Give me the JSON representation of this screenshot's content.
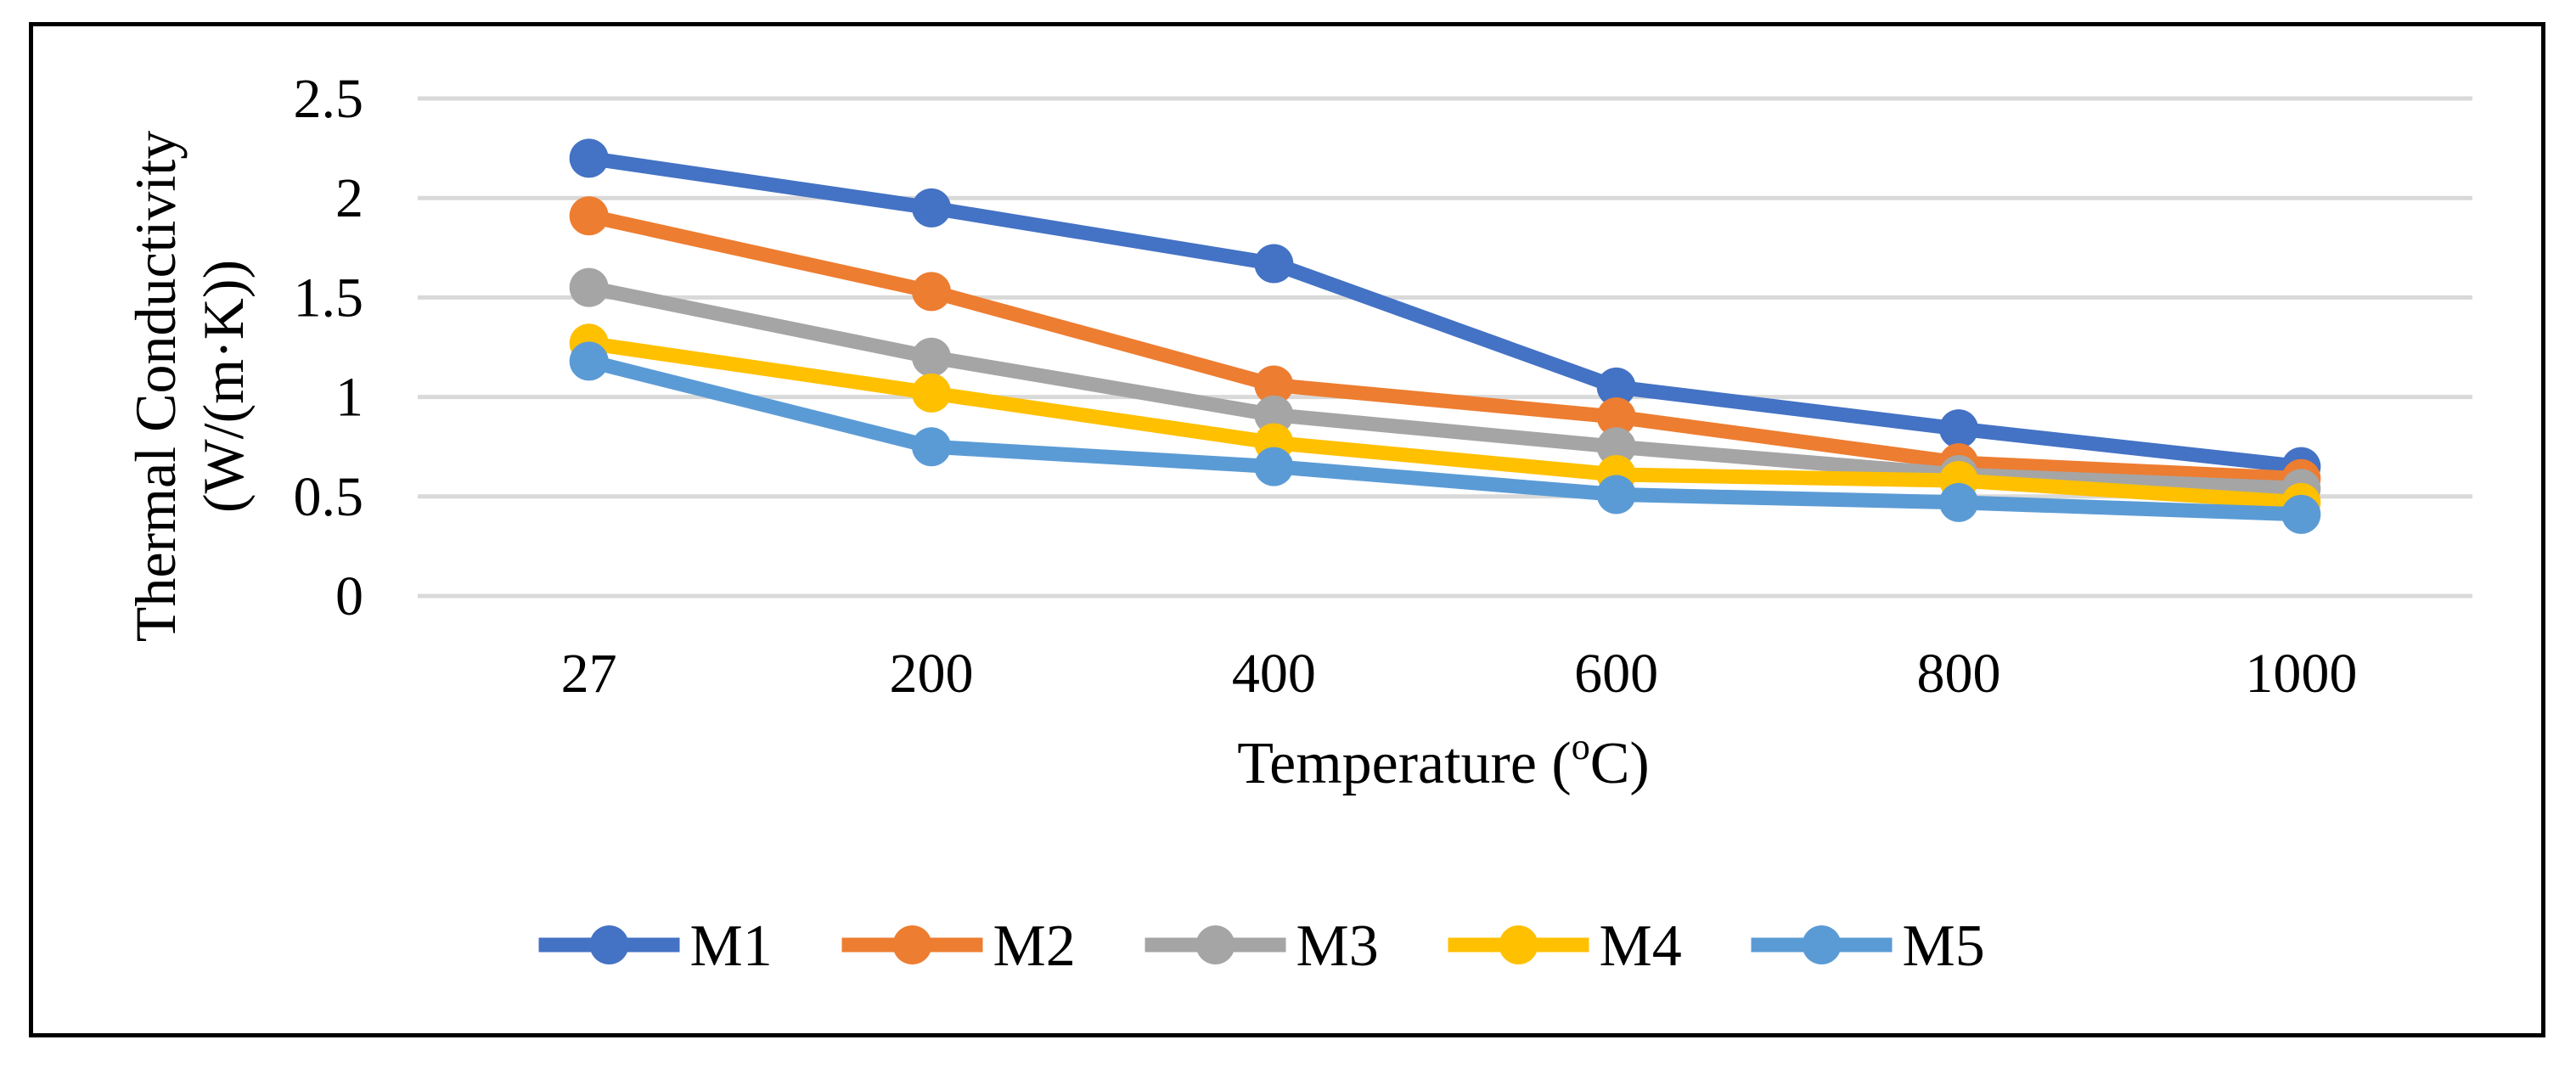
{
  "chart_data": {
    "type": "line",
    "title": "",
    "xlabel": "Temperature (oC)",
    "xlabel_main": "Temperature (",
    "xlabel_sup": "o",
    "xlabel_end": "C)",
    "ylabel_line1": "Thermal Conductivity",
    "ylabel_line2": "(W/(m·K))",
    "categories": [
      "27",
      "200",
      "400",
      "600",
      "800",
      "1000"
    ],
    "ylim": [
      0,
      2.5
    ],
    "yticks": [
      0,
      0.5,
      1,
      1.5,
      2,
      2.5
    ],
    "ytick_labels": [
      "0",
      "0.5",
      "1",
      "1.5",
      "2",
      "2.5"
    ],
    "grid": true,
    "legend_position": "bottom",
    "series": [
      {
        "name": "M1",
        "color": "#4472C4",
        "values": [
          2.2,
          1.95,
          1.67,
          1.05,
          0.84,
          0.65
        ]
      },
      {
        "name": "M2",
        "color": "#ED7D31",
        "values": [
          1.91,
          1.53,
          1.06,
          0.9,
          0.67,
          0.59
        ]
      },
      {
        "name": "M3",
        "color": "#A5A5A5",
        "values": [
          1.55,
          1.2,
          0.91,
          0.75,
          0.61,
          0.54
        ]
      },
      {
        "name": "M4",
        "color": "#FFC000",
        "values": [
          1.27,
          1.02,
          0.77,
          0.61,
          0.58,
          0.47
        ]
      },
      {
        "name": "M5",
        "color": "#5B9BD5",
        "values": [
          1.18,
          0.75,
          0.65,
          0.51,
          0.47,
          0.41
        ]
      }
    ]
  }
}
